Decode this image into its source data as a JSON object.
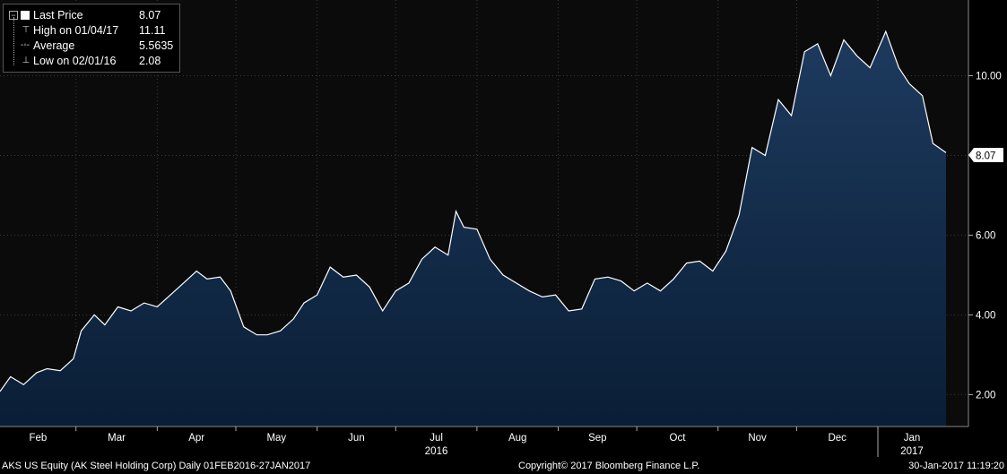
{
  "legend": {
    "last_price": {
      "label": "Last Price",
      "value": "8.07"
    },
    "high": {
      "label": "High on 01/04/17",
      "value": "11.11"
    },
    "average": {
      "label": "Average",
      "value": "5.5635"
    },
    "low": {
      "label": "Low on 02/01/16",
      "value": "2.08"
    }
  },
  "footer": {
    "security": "AKS US Equity (AK Steel Holding Corp)  Daily 01FEB2016-27JAN2017",
    "copyright": "Copyright© 2017 Bloomberg Finance L.P.",
    "timestamp": "30-Jan-2017 11:19:20"
  },
  "colors": {
    "background": "#000000",
    "area_top": "#1d3a5e",
    "area_bottom": "#0a1e36",
    "line": "#ffffff",
    "grid": "#3a3a3a",
    "axis_text": "#ffffff"
  },
  "chart_data": {
    "type": "area",
    "y_axis_side": "right",
    "ylim": [
      1.2,
      11.9
    ],
    "y_ticks": [
      2.0,
      4.0,
      6.0,
      8.0,
      10.0
    ],
    "y_tick_labels": [
      "2.00",
      "4.00",
      "6.00",
      "8.00",
      "10.00"
    ],
    "last_value_label": "8.07",
    "grid": true,
    "month_labels": [
      "Feb",
      "Mar",
      "Apr",
      "May",
      "Jun",
      "Jul",
      "Aug",
      "Sep",
      "Oct",
      "Nov",
      "Dec",
      "Jan"
    ],
    "year_labels": [
      {
        "month": "Jul",
        "label": "2016"
      },
      {
        "month": "Jan",
        "label": "2017"
      }
    ],
    "x": [
      "2016-02-01",
      "2016-02-05",
      "2016-02-10",
      "2016-02-15",
      "2016-02-19",
      "2016-02-24",
      "2016-02-29",
      "2016-03-03",
      "2016-03-08",
      "2016-03-12",
      "2016-03-17",
      "2016-03-22",
      "2016-03-27",
      "2016-04-01",
      "2016-04-06",
      "2016-04-11",
      "2016-04-16",
      "2016-04-20",
      "2016-04-25",
      "2016-04-29",
      "2016-05-04",
      "2016-05-09",
      "2016-05-13",
      "2016-05-18",
      "2016-05-23",
      "2016-05-27",
      "2016-06-01",
      "2016-06-06",
      "2016-06-11",
      "2016-06-16",
      "2016-06-21",
      "2016-06-26",
      "2016-07-01",
      "2016-07-06",
      "2016-07-11",
      "2016-07-16",
      "2016-07-21",
      "2016-07-24",
      "2016-07-27",
      "2016-08-01",
      "2016-08-06",
      "2016-08-11",
      "2016-08-16",
      "2016-08-21",
      "2016-08-26",
      "2016-08-31",
      "2016-09-05",
      "2016-09-10",
      "2016-09-15",
      "2016-09-20",
      "2016-09-25",
      "2016-09-30",
      "2016-10-05",
      "2016-10-10",
      "2016-10-15",
      "2016-10-20",
      "2016-10-25",
      "2016-10-30",
      "2016-11-04",
      "2016-11-09",
      "2016-11-14",
      "2016-11-19",
      "2016-11-24",
      "2016-11-29",
      "2016-12-04",
      "2016-12-09",
      "2016-12-14",
      "2016-12-19",
      "2016-12-24",
      "2016-12-29",
      "2017-01-04",
      "2017-01-09",
      "2017-01-13",
      "2017-01-18",
      "2017-01-22",
      "2017-01-27"
    ],
    "values": [
      2.08,
      2.45,
      2.25,
      2.55,
      2.65,
      2.6,
      2.9,
      3.6,
      4.0,
      3.75,
      4.2,
      4.1,
      4.3,
      4.2,
      4.5,
      4.8,
      5.1,
      4.9,
      4.95,
      4.6,
      3.7,
      3.5,
      3.5,
      3.6,
      3.9,
      4.3,
      4.5,
      5.2,
      4.95,
      5.0,
      4.7,
      4.1,
      4.6,
      4.8,
      5.4,
      5.7,
      5.5,
      6.6,
      6.2,
      6.15,
      5.4,
      5.0,
      4.8,
      4.6,
      4.45,
      4.5,
      4.1,
      4.15,
      4.9,
      4.95,
      4.85,
      4.6,
      4.8,
      4.6,
      4.9,
      5.3,
      5.35,
      5.1,
      5.6,
      6.5,
      8.2,
      8.0,
      9.4,
      9.0,
      10.6,
      10.8,
      10.0,
      10.9,
      10.5,
      10.2,
      11.11,
      10.2,
      9.8,
      9.5,
      8.3,
      8.07
    ]
  }
}
